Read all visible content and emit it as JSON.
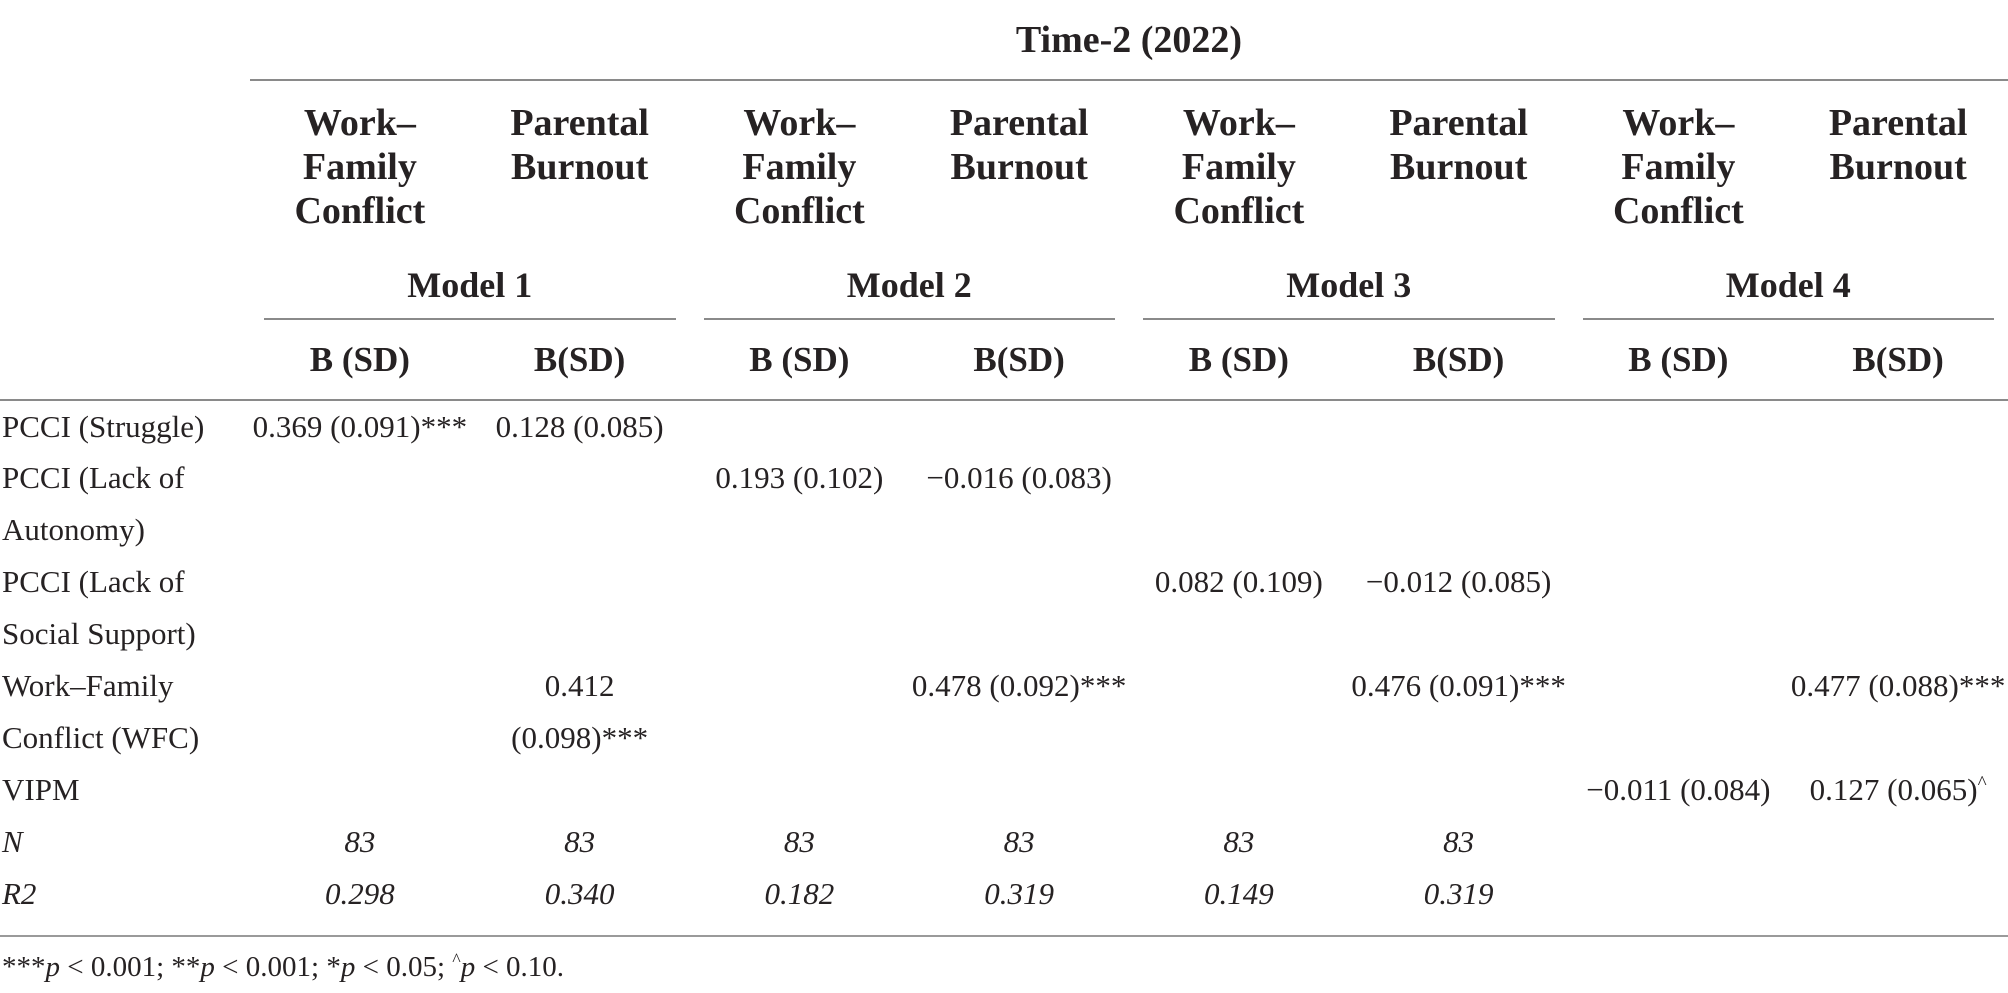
{
  "table": {
    "title": "Time-2 (2022)",
    "col_headers": [
      "Work–Family\nConflict",
      "Parental\nBurnout",
      "Work–\nFamily\nConflict",
      "Parental\nBurnout",
      "Work–\nFamily\nConflict",
      "Parental\nBurnout",
      "Work–\nFamily\nConflict",
      "Parental\nBurnout"
    ],
    "model_labels": [
      "Model 1",
      "Model 2",
      "Model 3",
      "Model 4"
    ],
    "subheaders": [
      "B (SD)",
      "B(SD)",
      "B (SD)",
      "B(SD)",
      "B (SD)",
      "B(SD)",
      "B (SD)",
      "B(SD)"
    ],
    "rows": [
      {
        "label": "PCCI (Struggle)",
        "italic": false,
        "values": [
          "0.369 (0.091)***",
          "0.128 (0.085)",
          "",
          "",
          "",
          "",
          "",
          ""
        ]
      },
      {
        "label": "PCCI (Lack of",
        "italic": false,
        "values": [
          "",
          "",
          "0.193 (0.102)",
          "−0.016 (0.083)",
          "",
          "",
          "",
          ""
        ]
      },
      {
        "label": "Autonomy)",
        "italic": false,
        "values": [
          "",
          "",
          "",
          "",
          "",
          "",
          "",
          ""
        ]
      },
      {
        "label": "PCCI (Lack of",
        "italic": false,
        "values": [
          "",
          "",
          "",
          "",
          "0.082 (0.109)",
          "−0.012 (0.085)",
          "",
          ""
        ]
      },
      {
        "label": "Social Support)",
        "italic": false,
        "values": [
          "",
          "",
          "",
          "",
          "",
          "",
          "",
          ""
        ]
      },
      {
        "label": "Work–Family",
        "italic": false,
        "values": [
          "",
          "0.412",
          "",
          "0.478 (0.092)***",
          "",
          "0.476 (0.091)***",
          "",
          "0.477 (0.088)***"
        ]
      },
      {
        "label": "Conflict (WFC)",
        "italic": false,
        "values": [
          "",
          "(0.098)***",
          "",
          "",
          "",
          "",
          "",
          ""
        ]
      },
      {
        "label": "VIPM",
        "italic": false,
        "values": [
          "",
          "",
          "",
          "",
          "",
          "",
          "−0.011 (0.084)",
          "0.127 (0.065)^"
        ]
      },
      {
        "label": "N",
        "italic": true,
        "values": [
          "83",
          "83",
          "83",
          "83",
          "83",
          "83",
          "",
          ""
        ]
      },
      {
        "label": "R2",
        "italic": true,
        "values": [
          "0.298",
          "0.340",
          "0.182",
          "0.319",
          "0.149",
          "0.319",
          "",
          ""
        ]
      }
    ],
    "footnote": "***p < 0.001; **p < 0.001; *p < 0.05; ^p < 0.10.",
    "rule_color": "#8a8a8a",
    "text_color": "#262223"
  }
}
